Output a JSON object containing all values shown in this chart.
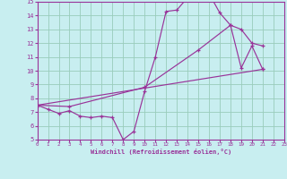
{
  "background_color": "#c8eef0",
  "grid_color": "#99ccbb",
  "line_color": "#993399",
  "xlabel": "Windchill (Refroidissement éolien,°C)",
  "xlim": [
    0,
    23
  ],
  "ylim": [
    5,
    15
  ],
  "xticks": [
    0,
    1,
    2,
    3,
    4,
    5,
    6,
    7,
    8,
    9,
    10,
    11,
    12,
    13,
    14,
    15,
    16,
    17,
    18,
    19,
    20,
    21,
    22,
    23
  ],
  "yticks": [
    5,
    6,
    7,
    8,
    9,
    10,
    11,
    12,
    13,
    14,
    15
  ],
  "curve1_x": [
    0,
    1,
    2,
    3,
    4,
    5,
    6,
    7,
    8,
    9,
    10,
    11,
    12,
    13,
    14,
    15,
    16,
    17,
    18,
    19,
    20,
    21
  ],
  "curve1_y": [
    7.5,
    7.2,
    6.9,
    7.1,
    6.7,
    6.6,
    6.7,
    6.6,
    5.0,
    5.6,
    8.5,
    11.0,
    14.3,
    14.4,
    15.3,
    15.5,
    15.6,
    14.2,
    13.3,
    10.2,
    11.8,
    10.1
  ],
  "line2_x": [
    0,
    21
  ],
  "line2_y": [
    7.5,
    10.1
  ],
  "curve3_x": [
    0,
    3,
    10,
    15,
    18,
    19,
    20,
    21
  ],
  "curve3_y": [
    7.5,
    7.4,
    8.8,
    11.5,
    13.3,
    13.0,
    12.0,
    11.8
  ]
}
